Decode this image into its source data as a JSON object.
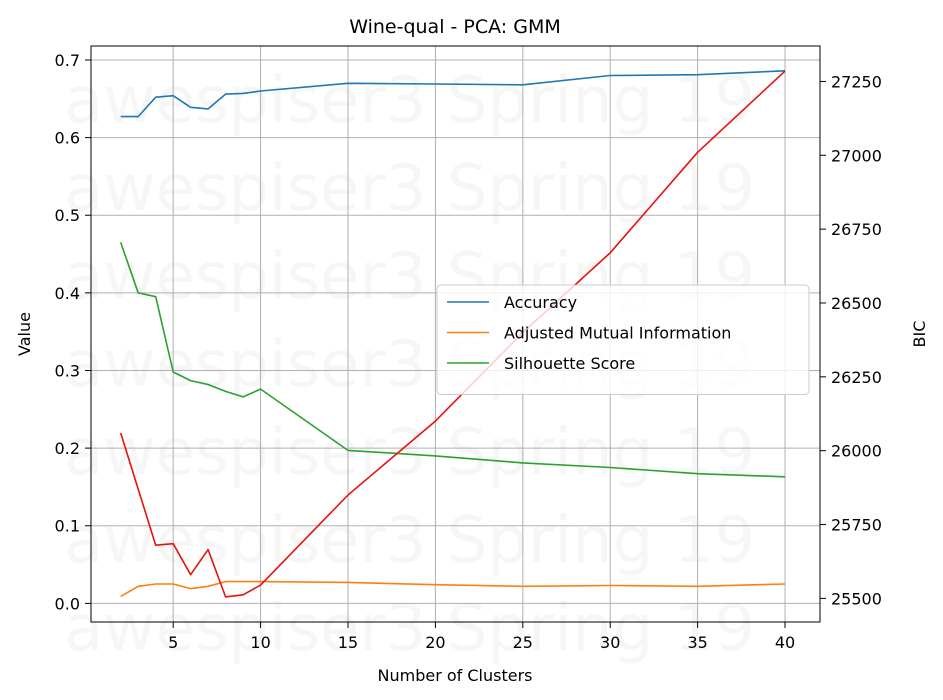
{
  "chart_data": {
    "type": "line",
    "title": "Wine-qual - PCA: GMM",
    "xlabel": "Number of Clusters",
    "ylabel": "Value",
    "y2label": "BIC",
    "watermark": "awespiser3 Spring 19",
    "xlim": [
      0.3,
      42.0
    ],
    "ylim": [
      -0.024,
      0.718
    ],
    "y2lim": [
      25420,
      27370
    ],
    "x_ticks": [
      5,
      10,
      15,
      20,
      25,
      30,
      35,
      40
    ],
    "y_ticks": [
      0.0,
      0.1,
      0.2,
      0.3,
      0.4,
      0.5,
      0.6,
      0.7
    ],
    "y2_ticks": [
      25500,
      25750,
      26000,
      26250,
      26500,
      26750,
      27000,
      27250
    ],
    "grid": true,
    "legend_position": "center-right",
    "x": [
      2,
      3,
      4,
      5,
      6,
      7,
      8,
      9,
      10,
      15,
      20,
      25,
      30,
      35,
      40
    ],
    "series": [
      {
        "name": "Accuracy",
        "axis": "left",
        "color": "#1f77b4",
        "values": [
          0.627,
          0.627,
          0.652,
          0.654,
          0.639,
          0.637,
          0.656,
          0.657,
          0.66,
          0.67,
          0.669,
          0.668,
          0.68,
          0.681,
          0.686
        ]
      },
      {
        "name": "Adjusted Mutual Information",
        "axis": "left",
        "color": "#ff7f0e",
        "values": [
          0.009,
          0.022,
          0.025,
          0.025,
          0.019,
          0.022,
          0.028,
          0.028,
          0.028,
          0.027,
          0.024,
          0.022,
          0.023,
          0.022,
          0.025
        ]
      },
      {
        "name": "Silhouette Score",
        "axis": "left",
        "color": "#2ca02c",
        "values": [
          0.465,
          0.4,
          0.395,
          0.298,
          0.287,
          0.282,
          0.273,
          0.266,
          0.276,
          0.197,
          0.19,
          0.181,
          0.175,
          0.167,
          0.163
        ]
      },
      {
        "axis": "right",
        "color": "#e8120c",
        "values": [
          26060,
          25870,
          25680,
          25685,
          25580,
          25665,
          25505,
          25512,
          25545,
          25850,
          26100,
          26400,
          26670,
          27010,
          27285
        ]
      }
    ]
  }
}
